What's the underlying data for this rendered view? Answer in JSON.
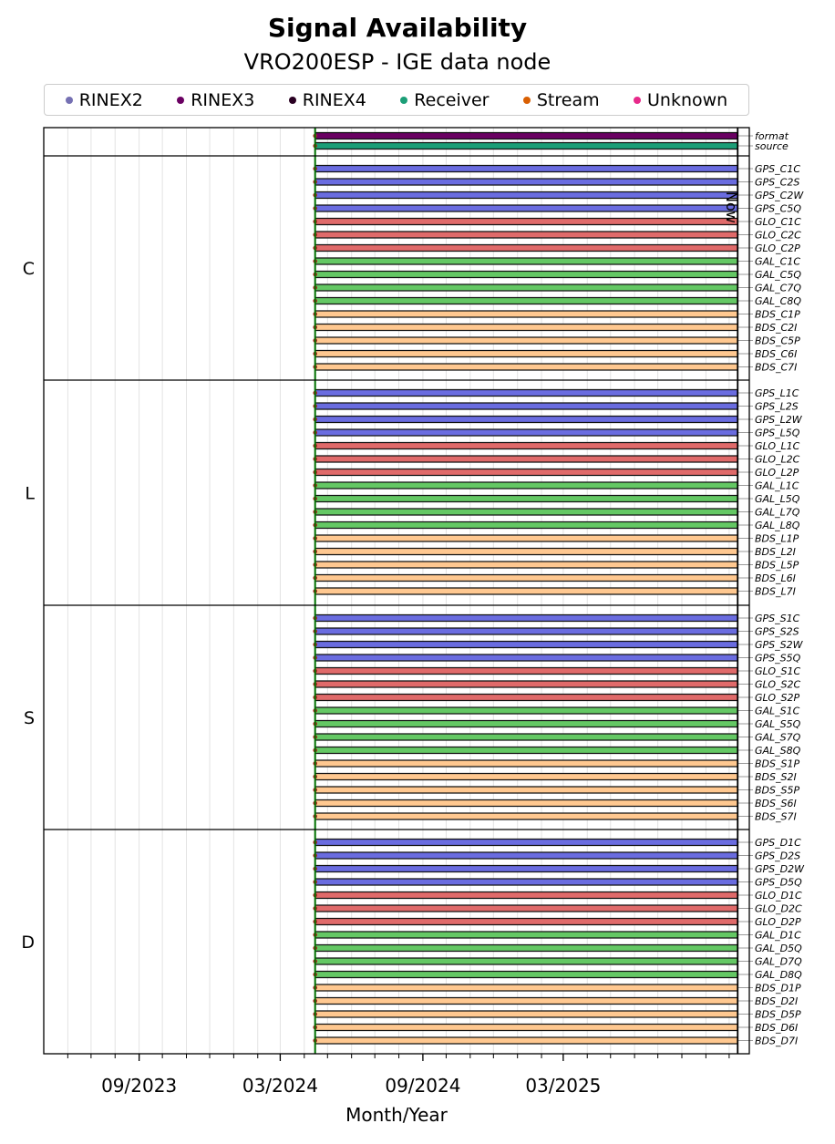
{
  "chart_data": {
    "type": "timeline",
    "title": "Signal Availability",
    "subtitle": "VRO200ESP - IGE data node",
    "xlabel": "Month/Year",
    "x_tick_labels": [
      "09/2023",
      "03/2024",
      "09/2024",
      "03/2025"
    ],
    "x_range": [
      "2023-05-01",
      "2025-10-27"
    ],
    "legend": [
      {
        "name": "RINEX2",
        "color": "#7570b3"
      },
      {
        "name": "RINEX3",
        "color": "#6a0062"
      },
      {
        "name": "RINEX4",
        "color": "#2a0022"
      },
      {
        "name": "Receiver",
        "color": "#1b9e77"
      },
      {
        "name": "Stream",
        "color": "#d95f02"
      },
      {
        "name": "Unknown",
        "color": "#e7298a"
      }
    ],
    "colors": {
      "GPS": "#6a6ce0",
      "GLO": "#e06a6a",
      "GAL": "#64c864",
      "BDS": "#ffc890",
      "format": "#6a0062",
      "source": "#1b9e77"
    },
    "start_marker_date": "2024-04-15",
    "now_label": "Now",
    "now_date": "2025-10-12",
    "meta_rows": [
      {
        "label": "format",
        "start": "2024-04-15",
        "end": "2025-10-12"
      },
      {
        "label": "source",
        "start": "2024-04-15",
        "end": "2025-10-12"
      }
    ],
    "groups": [
      {
        "label": "C",
        "signals": [
          "GPS_C1C",
          "GPS_C2S",
          "GPS_C2W",
          "GPS_C5Q",
          "GLO_C1C",
          "GLO_C2C",
          "GLO_C2P",
          "GAL_C1C",
          "GAL_C5Q",
          "GAL_C7Q",
          "GAL_C8Q",
          "BDS_C1P",
          "BDS_C2I",
          "BDS_C5P",
          "BDS_C6I",
          "BDS_C7I"
        ]
      },
      {
        "label": "L",
        "signals": [
          "GPS_L1C",
          "GPS_L2S",
          "GPS_L2W",
          "GPS_L5Q",
          "GLO_L1C",
          "GLO_L2C",
          "GLO_L2P",
          "GAL_L1C",
          "GAL_L5Q",
          "GAL_L7Q",
          "GAL_L8Q",
          "BDS_L1P",
          "BDS_L2I",
          "BDS_L5P",
          "BDS_L6I",
          "BDS_L7I"
        ]
      },
      {
        "label": "S",
        "signals": [
          "GPS_S1C",
          "GPS_S2S",
          "GPS_S2W",
          "GPS_S5Q",
          "GLO_S1C",
          "GLO_S2C",
          "GLO_S2P",
          "GAL_S1C",
          "GAL_S5Q",
          "GAL_S7Q",
          "GAL_S8Q",
          "BDS_S1P",
          "BDS_S2I",
          "BDS_S5P",
          "BDS_S6I",
          "BDS_S7I"
        ]
      },
      {
        "label": "D",
        "signals": [
          "GPS_D1C",
          "GPS_D2S",
          "GPS_D2W",
          "GPS_D5Q",
          "GLO_D1C",
          "GLO_D2C",
          "GLO_D2P",
          "GAL_D1C",
          "GAL_D5Q",
          "GAL_D7Q",
          "GAL_D8Q",
          "BDS_D1P",
          "BDS_D2I",
          "BDS_D5P",
          "BDS_D6I",
          "BDS_D7I"
        ]
      }
    ],
    "signal_start": "2024-04-15",
    "signal_end": "2025-10-12"
  }
}
